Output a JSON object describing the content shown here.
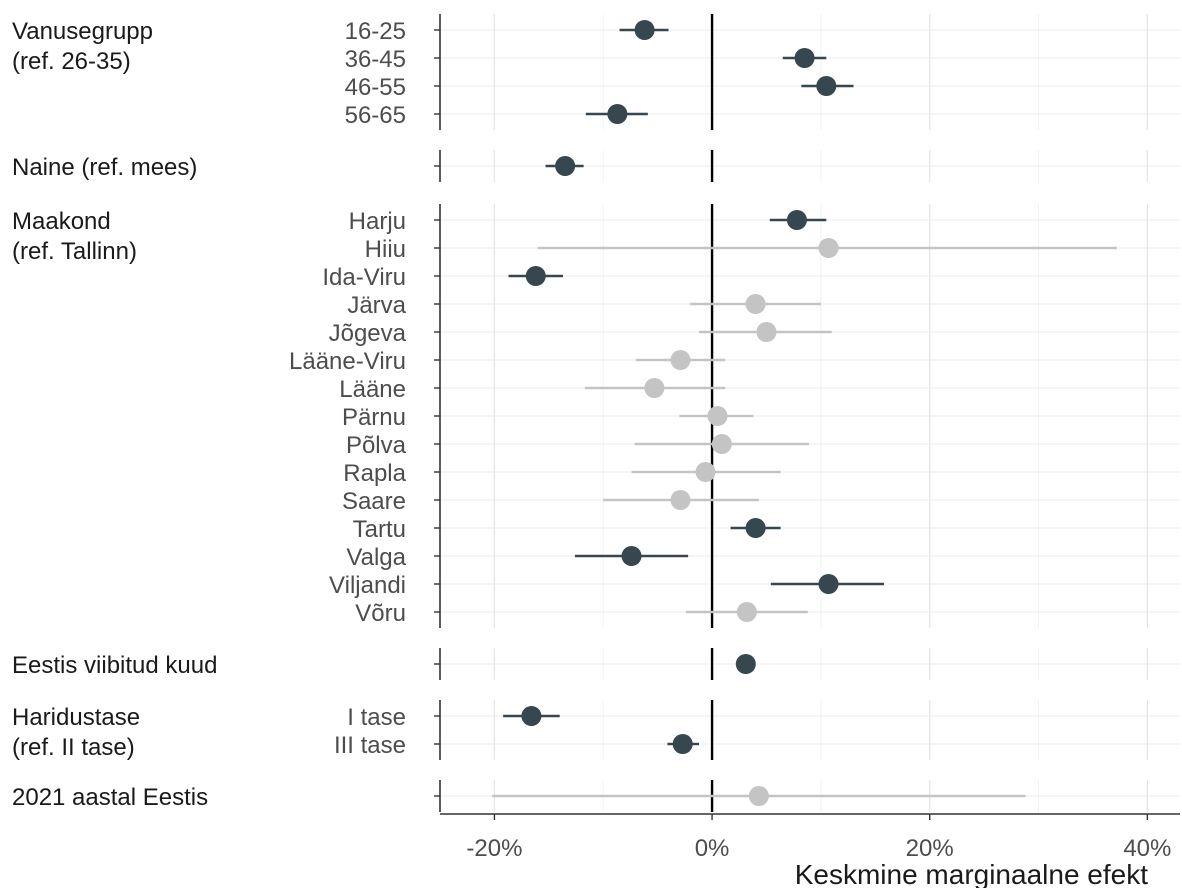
{
  "chart_data": {
    "type": "forest",
    "xlabel": "Keskmine marginaalne efekt",
    "x_ticks": [
      "-20%",
      "0%",
      "20%",
      "40%"
    ],
    "x_tick_values": [
      -20,
      0,
      20,
      40
    ],
    "xlim": [
      -25,
      43
    ],
    "reference_line": 0,
    "colors": {
      "significant": "#37474f",
      "not_significant": "#c4c4c4"
    },
    "groups": [
      {
        "label_lines": [
          "Vanusegrupp",
          "(ref. 26-35)"
        ],
        "items": [
          {
            "label": "16-25",
            "estimate": -6.2,
            "lower": -8.5,
            "upper": -4.0,
            "significant": true
          },
          {
            "label": "36-45",
            "estimate": 8.5,
            "lower": 6.5,
            "upper": 10.5,
            "significant": true
          },
          {
            "label": "46-55",
            "estimate": 10.5,
            "lower": 8.2,
            "upper": 13.0,
            "significant": true
          },
          {
            "label": "56-65",
            "estimate": -8.7,
            "lower": -11.6,
            "upper": -5.9,
            "significant": true
          }
        ]
      },
      {
        "label_lines": [
          "Naine (ref. mees)"
        ],
        "items": [
          {
            "label": "",
            "estimate": -13.5,
            "lower": -15.3,
            "upper": -11.8,
            "significant": true
          }
        ]
      },
      {
        "label_lines": [
          "Maakond",
          "(ref. Tallinn)"
        ],
        "items": [
          {
            "label": "Harju",
            "estimate": 7.8,
            "lower": 5.3,
            "upper": 10.5,
            "significant": true
          },
          {
            "label": "Hiiu",
            "estimate": 10.7,
            "lower": -16.0,
            "upper": 37.2,
            "significant": false
          },
          {
            "label": "Ida-Viru",
            "estimate": -16.2,
            "lower": -18.7,
            "upper": -13.7,
            "significant": true
          },
          {
            "label": "Järva",
            "estimate": 4.0,
            "lower": -2.0,
            "upper": 10.0,
            "significant": false
          },
          {
            "label": "Jõgeva",
            "estimate": 5.0,
            "lower": -1.2,
            "upper": 11.0,
            "significant": false
          },
          {
            "label": "Lääne-Viru",
            "estimate": -2.9,
            "lower": -7.0,
            "upper": 1.2,
            "significant": false
          },
          {
            "label": "Lääne",
            "estimate": -5.3,
            "lower": -11.7,
            "upper": 1.2,
            "significant": false
          },
          {
            "label": "Pärnu",
            "estimate": 0.5,
            "lower": -3.0,
            "upper": 3.8,
            "significant": false
          },
          {
            "label": "Põlva",
            "estimate": 0.9,
            "lower": -7.1,
            "upper": 8.9,
            "significant": false
          },
          {
            "label": "Rapla",
            "estimate": -0.6,
            "lower": -7.4,
            "upper": 6.3,
            "significant": false
          },
          {
            "label": "Saare",
            "estimate": -2.9,
            "lower": -10.0,
            "upper": 4.3,
            "significant": false
          },
          {
            "label": "Tartu",
            "estimate": 4.0,
            "lower": 1.7,
            "upper": 6.3,
            "significant": true
          },
          {
            "label": "Valga",
            "estimate": -7.4,
            "lower": -12.6,
            "upper": -2.2,
            "significant": true
          },
          {
            "label": "Viljandi",
            "estimate": 10.7,
            "lower": 5.4,
            "upper": 15.8,
            "significant": true
          },
          {
            "label": "Võru",
            "estimate": 3.2,
            "lower": -2.4,
            "upper": 8.8,
            "significant": false
          }
        ]
      },
      {
        "label_lines": [
          "Eestis viibitud kuud"
        ],
        "items": [
          {
            "label": "",
            "estimate": 3.1,
            "lower": 2.9,
            "upper": 3.3,
            "significant": true
          }
        ]
      },
      {
        "label_lines": [
          "Haridustase",
          "(ref. II tase)"
        ],
        "items": [
          {
            "label": "I tase",
            "estimate": -16.6,
            "lower": -19.2,
            "upper": -14.0,
            "significant": true
          },
          {
            "label": "III tase",
            "estimate": -2.7,
            "lower": -4.1,
            "upper": -1.2,
            "significant": true
          }
        ]
      },
      {
        "label_lines": [
          "2021 aastal Eestis"
        ],
        "items": [
          {
            "label": "",
            "estimate": 4.3,
            "lower": -20.2,
            "upper": 28.8,
            "significant": false
          }
        ]
      }
    ]
  }
}
